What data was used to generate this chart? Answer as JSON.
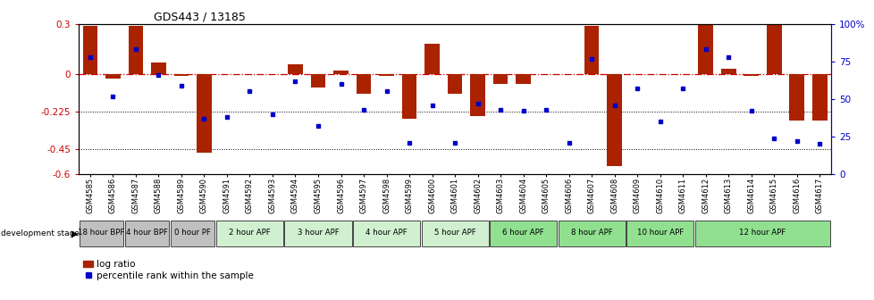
{
  "title": "GDS443 / 13185",
  "samples": [
    "GSM4585",
    "GSM4586",
    "GSM4587",
    "GSM4588",
    "GSM4589",
    "GSM4590",
    "GSM4591",
    "GSM4592",
    "GSM4593",
    "GSM4594",
    "GSM4595",
    "GSM4596",
    "GSM4597",
    "GSM4598",
    "GSM4599",
    "GSM4600",
    "GSM4601",
    "GSM4602",
    "GSM4603",
    "GSM4604",
    "GSM4605",
    "GSM4606",
    "GSM4607",
    "GSM4608",
    "GSM4609",
    "GSM4610",
    "GSM4611",
    "GSM4612",
    "GSM4613",
    "GSM4614",
    "GSM4615",
    "GSM4616",
    "GSM4617"
  ],
  "log_ratio": [
    0.29,
    -0.03,
    0.29,
    0.07,
    -0.01,
    -0.47,
    0.0,
    0.0,
    0.0,
    0.06,
    -0.08,
    0.02,
    -0.12,
    -0.01,
    -0.27,
    0.18,
    -0.12,
    -0.25,
    -0.06,
    -0.06,
    0.0,
    0.0,
    0.29,
    -0.55,
    0.0,
    0.0,
    0.0,
    0.3,
    0.03,
    -0.01,
    0.3,
    -0.28,
    -0.28
  ],
  "percentile": [
    78,
    52,
    83,
    66,
    59,
    37,
    38,
    55,
    40,
    62,
    32,
    60,
    43,
    55,
    21,
    46,
    21,
    47,
    43,
    42,
    43,
    21,
    77,
    46,
    57,
    35,
    57,
    83,
    78,
    42,
    24,
    22,
    20
  ],
  "bar_color": "#aa2200",
  "dot_color": "#0000cc",
  "hline0_color": "#cc0000",
  "hline1_color": "#000000",
  "ylim_left": [
    -0.6,
    0.3
  ],
  "ylim_right": [
    0,
    100
  ],
  "dev_stages": [
    {
      "label": "18 hour BPF",
      "start": 0,
      "end": 2,
      "color": "#c0c0c0"
    },
    {
      "label": "4 hour BPF",
      "start": 2,
      "end": 4,
      "color": "#c0c0c0"
    },
    {
      "label": "0 hour PF",
      "start": 4,
      "end": 6,
      "color": "#c0c0c0"
    },
    {
      "label": "2 hour APF",
      "start": 6,
      "end": 9,
      "color": "#d0f0d0"
    },
    {
      "label": "3 hour APF",
      "start": 9,
      "end": 12,
      "color": "#d0f0d0"
    },
    {
      "label": "4 hour APF",
      "start": 12,
      "end": 15,
      "color": "#d0f0d0"
    },
    {
      "label": "5 hour APF",
      "start": 15,
      "end": 18,
      "color": "#d0f0d0"
    },
    {
      "label": "6 hour APF",
      "start": 18,
      "end": 21,
      "color": "#90e090"
    },
    {
      "label": "8 hour APF",
      "start": 21,
      "end": 24,
      "color": "#90e090"
    },
    {
      "label": "10 hour APF",
      "start": 24,
      "end": 27,
      "color": "#90e090"
    },
    {
      "label": "12 hour APF",
      "start": 27,
      "end": 33,
      "color": "#90e090"
    }
  ]
}
